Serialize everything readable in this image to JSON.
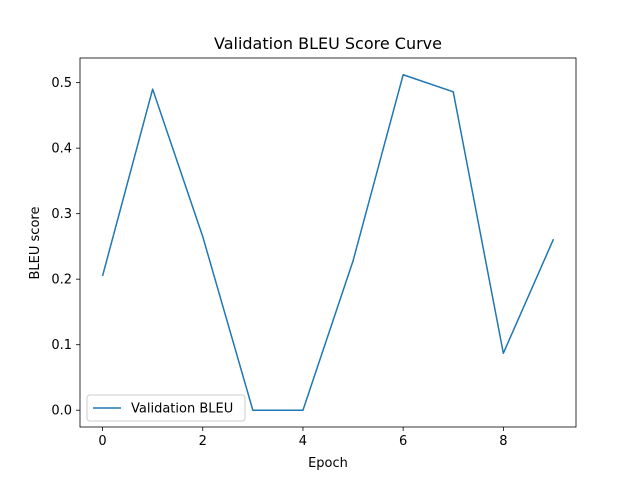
{
  "chart_data": {
    "type": "line",
    "title": "Validation BLEU Score Curve",
    "xlabel": "Epoch",
    "ylabel": "BLEU score",
    "x": [
      0,
      1,
      2,
      3,
      4,
      5,
      6,
      7,
      8,
      9
    ],
    "series": [
      {
        "name": "Validation BLEU",
        "color": "#1f77b4",
        "values": [
          0.205,
          0.49,
          0.265,
          0.0,
          0.0,
          0.228,
          0.512,
          0.486,
          0.087,
          0.261
        ]
      }
    ],
    "xlim": [
      -0.45,
      9.45
    ],
    "ylim": [
      -0.0256,
      0.5376
    ],
    "xticks": [
      0,
      2,
      4,
      6,
      8
    ],
    "yticks": [
      0.0,
      0.1,
      0.2,
      0.3,
      0.4,
      0.5
    ],
    "xtick_labels": [
      "0",
      "2",
      "4",
      "6",
      "8"
    ],
    "ytick_labels": [
      "0.0",
      "0.1",
      "0.2",
      "0.3",
      "0.4",
      "0.5"
    ],
    "grid": false,
    "legend_position": "lower-left"
  }
}
